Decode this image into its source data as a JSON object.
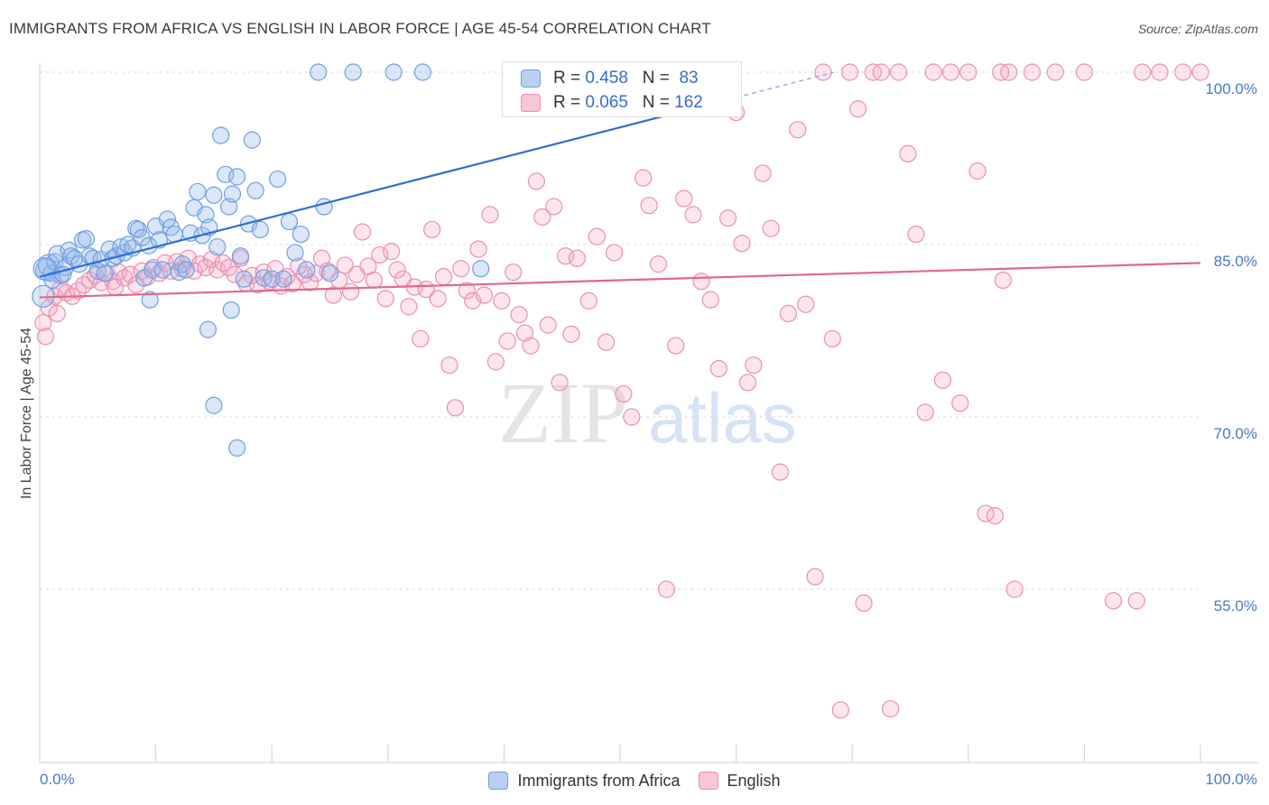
{
  "title": "IMMIGRANTS FROM AFRICA VS ENGLISH IN LABOR FORCE | AGE 45-54 CORRELATION CHART",
  "source": "Source: ZipAtlas.com",
  "watermark": {
    "zip": "ZIP",
    "atlas": "atlas"
  },
  "stats": [
    {
      "r_label": "R =",
      "r_value": "0.458",
      "n_label": "N =",
      "n_value": "83",
      "color": "#6f9ee0"
    },
    {
      "r_label": "R =",
      "r_value": "0.065",
      "n_label": "N =",
      "n_value": "162",
      "color": "#ea8fb0"
    }
  ],
  "legend": [
    {
      "name": "Immigrants from Africa",
      "color": "#6f9ee0"
    },
    {
      "name": "English",
      "color": "#ea8fb0"
    }
  ],
  "chart_data": {
    "type": "scatter",
    "title": "IMMIGRANTS FROM AFRICA VS ENGLISH IN LABOR FORCE | AGE 45-54 CORRELATION CHART",
    "xlabel": "",
    "ylabel": "In Labor Force | Age 45-54",
    "xlim": [
      0,
      100
    ],
    "ylim": [
      40,
      102
    ],
    "x_tick_labels": [
      "0.0%",
      "100.0%"
    ],
    "y_ticks": [
      55,
      70,
      85,
      100
    ],
    "y_tick_labels": [
      "55.0%",
      "70.0%",
      "85.0%",
      "100.0%"
    ],
    "grid": "horizontal dashed",
    "legend_position": "bottom",
    "series": [
      {
        "name": "Immigrants from Africa",
        "color": "#6f9ee0",
        "trend": {
          "x0": 0,
          "y0": 82.2,
          "x1": 100,
          "y1": 108.2,
          "solid_until_x": 60
        },
        "points": [
          [
            0.3,
            80.5
          ],
          [
            0.6,
            82.8
          ],
          [
            0.8,
            83.2
          ],
          [
            1,
            82.5
          ],
          [
            1.3,
            83.5
          ],
          [
            1.5,
            84.2
          ],
          [
            1.8,
            82.3
          ],
          [
            2.2,
            83.0
          ],
          [
            2.5,
            84.5
          ],
          [
            2.7,
            84.0
          ],
          [
            3,
            83.8
          ],
          [
            3.4,
            83.3
          ],
          [
            3.7,
            85.4
          ],
          [
            4,
            85.5
          ],
          [
            4.3,
            84.0
          ],
          [
            4.6,
            83.8
          ],
          [
            5,
            82.7
          ],
          [
            5.3,
            83.7
          ],
          [
            5.6,
            82.5
          ],
          [
            6,
            84.6
          ],
          [
            6.3,
            83.8
          ],
          [
            6.6,
            84.0
          ],
          [
            7,
            84.8
          ],
          [
            7.3,
            84.3
          ],
          [
            7.6,
            85.0
          ],
          [
            8,
            84.7
          ],
          [
            8.3,
            86.4
          ],
          [
            8.5,
            86.3
          ],
          [
            8.8,
            85.6
          ],
          [
            9,
            82.1
          ],
          [
            9.4,
            84.9
          ],
          [
            9.7,
            82.8
          ],
          [
            10,
            86.6
          ],
          [
            10.3,
            85.4
          ],
          [
            10.6,
            82.8
          ],
          [
            11,
            87.2
          ],
          [
            11.3,
            86.5
          ],
          [
            11.6,
            85.9
          ],
          [
            12,
            82.6
          ],
          [
            12.3,
            83.3
          ],
          [
            12.6,
            82.8
          ],
          [
            13,
            86.0
          ],
          [
            13.3,
            88.2
          ],
          [
            13.6,
            89.6
          ],
          [
            14,
            85.8
          ],
          [
            14.3,
            87.6
          ],
          [
            14.6,
            86.5
          ],
          [
            15,
            89.3
          ],
          [
            15.3,
            84.8
          ],
          [
            15.6,
            94.5
          ],
          [
            16,
            91.1
          ],
          [
            16.3,
            88.3
          ],
          [
            16.6,
            89.4
          ],
          [
            17,
            90.9
          ],
          [
            17.3,
            84.0
          ],
          [
            17.6,
            82.0
          ],
          [
            18,
            86.8
          ],
          [
            18.3,
            94.1
          ],
          [
            18.6,
            89.7
          ],
          [
            19,
            86.3
          ],
          [
            19.3,
            82.1
          ],
          [
            20,
            82.0
          ],
          [
            20.5,
            90.7
          ],
          [
            21,
            82.0
          ],
          [
            21.5,
            87.0
          ],
          [
            22,
            84.3
          ],
          [
            22.5,
            85.9
          ],
          [
            23,
            82.8
          ],
          [
            24.5,
            88.3
          ],
          [
            25,
            82.5
          ],
          [
            24,
            100
          ],
          [
            27,
            100
          ],
          [
            30.5,
            100
          ],
          [
            33,
            100
          ],
          [
            9.5,
            80.2
          ],
          [
            14.5,
            77.6
          ],
          [
            16.5,
            79.3
          ],
          [
            15,
            71.0
          ],
          [
            17,
            67.3
          ],
          [
            38,
            82.9
          ],
          [
            0.4,
            82.9
          ],
          [
            1.1,
            81.9
          ],
          [
            2,
            82.4
          ]
        ]
      },
      {
        "name": "English",
        "color": "#ea8fb0",
        "trend": {
          "x0": 0,
          "y0": 80.4,
          "x1": 100,
          "y1": 83.4
        },
        "points": [
          [
            0.3,
            78.2
          ],
          [
            0.8,
            79.5
          ],
          [
            1.3,
            80.5
          ],
          [
            1.8,
            81.2
          ],
          [
            2.3,
            80.8
          ],
          [
            2.8,
            80.5
          ],
          [
            3.3,
            81.0
          ],
          [
            3.8,
            81.5
          ],
          [
            4.3,
            81.9
          ],
          [
            4.8,
            82.3
          ],
          [
            5.3,
            81.7
          ],
          [
            5.8,
            82.5
          ],
          [
            6.3,
            81.8
          ],
          [
            6.8,
            82.6
          ],
          [
            7.3,
            82.1
          ],
          [
            7.8,
            82.4
          ],
          [
            8.3,
            81.5
          ],
          [
            8.8,
            82.7
          ],
          [
            9.3,
            82.2
          ],
          [
            9.8,
            83.0
          ],
          [
            10.3,
            82.5
          ],
          [
            10.8,
            83.4
          ],
          [
            11.3,
            82.7
          ],
          [
            11.8,
            83.5
          ],
          [
            12.3,
            82.9
          ],
          [
            12.8,
            83.8
          ],
          [
            13.3,
            82.7
          ],
          [
            13.8,
            83.3
          ],
          [
            14.3,
            83.0
          ],
          [
            14.8,
            83.7
          ],
          [
            15.3,
            82.8
          ],
          [
            15.8,
            83.4
          ],
          [
            16.3,
            83.0
          ],
          [
            16.8,
            82.4
          ],
          [
            17.3,
            83.8
          ],
          [
            17.8,
            81.6
          ],
          [
            18.3,
            82.3
          ],
          [
            18.8,
            81.5
          ],
          [
            19.3,
            82.6
          ],
          [
            19.8,
            81.8
          ],
          [
            20.3,
            82.9
          ],
          [
            20.8,
            81.4
          ],
          [
            21.3,
            82.2
          ],
          [
            21.8,
            81.6
          ],
          [
            22.3,
            83.1
          ],
          [
            22.8,
            82.4
          ],
          [
            23.3,
            81.7
          ],
          [
            23.8,
            82.5
          ],
          [
            24.3,
            83.8
          ],
          [
            24.8,
            82.7
          ],
          [
            25.3,
            80.6
          ],
          [
            25.8,
            81.9
          ],
          [
            26.3,
            83.2
          ],
          [
            26.8,
            80.9
          ],
          [
            27.3,
            82.4
          ],
          [
            27.8,
            86.1
          ],
          [
            28.3,
            83.1
          ],
          [
            28.8,
            81.9
          ],
          [
            29.3,
            84.1
          ],
          [
            29.8,
            80.3
          ],
          [
            30.3,
            84.4
          ],
          [
            30.8,
            82.8
          ],
          [
            31.3,
            82.0
          ],
          [
            31.8,
            79.6
          ],
          [
            32.3,
            81.3
          ],
          [
            32.8,
            76.8
          ],
          [
            33.3,
            81.1
          ],
          [
            33.8,
            86.3
          ],
          [
            34.3,
            80.3
          ],
          [
            34.8,
            82.2
          ],
          [
            35.3,
            74.5
          ],
          [
            35.8,
            70.8
          ],
          [
            36.3,
            82.9
          ],
          [
            36.8,
            81.0
          ],
          [
            37.3,
            80.1
          ],
          [
            37.8,
            84.6
          ],
          [
            38.3,
            80.6
          ],
          [
            38.8,
            87.6
          ],
          [
            39.3,
            74.8
          ],
          [
            39.8,
            80.1
          ],
          [
            40.3,
            76.6
          ],
          [
            40.8,
            82.6
          ],
          [
            41.3,
            78.9
          ],
          [
            41.8,
            77.3
          ],
          [
            42.3,
            76.2
          ],
          [
            42.8,
            90.5
          ],
          [
            43.3,
            87.4
          ],
          [
            43.8,
            78.0
          ],
          [
            44.3,
            88.3
          ],
          [
            44.8,
            73.0
          ],
          [
            45.3,
            84.0
          ],
          [
            45.8,
            77.2
          ],
          [
            46.3,
            83.8
          ],
          [
            47.3,
            80.1
          ],
          [
            48,
            85.7
          ],
          [
            48.8,
            76.5
          ],
          [
            49.5,
            84.3
          ],
          [
            50.3,
            72.0
          ],
          [
            51,
            70.0
          ],
          [
            52,
            90.8
          ],
          [
            52.5,
            88.4
          ],
          [
            53.3,
            83.3
          ],
          [
            54,
            55.0
          ],
          [
            54.8,
            76.2
          ],
          [
            55.5,
            89.0
          ],
          [
            56.3,
            87.6
          ],
          [
            57,
            81.8
          ],
          [
            57.8,
            80.2
          ],
          [
            58.5,
            74.2
          ],
          [
            59.3,
            87.3
          ],
          [
            60,
            96.5
          ],
          [
            60.5,
            85.1
          ],
          [
            61,
            73.0
          ],
          [
            61.5,
            74.5
          ],
          [
            62.3,
            91.2
          ],
          [
            63,
            86.4
          ],
          [
            63.8,
            65.2
          ],
          [
            64.5,
            79.0
          ],
          [
            65.3,
            95.0
          ],
          [
            66,
            79.8
          ],
          [
            66.8,
            56.1
          ],
          [
            67.5,
            100
          ],
          [
            68.3,
            76.8
          ],
          [
            69,
            44.5
          ],
          [
            69.8,
            100
          ],
          [
            70.5,
            96.8
          ],
          [
            71,
            53.8
          ],
          [
            71.8,
            100
          ],
          [
            72.5,
            100
          ],
          [
            73.3,
            44.6
          ],
          [
            74,
            100
          ],
          [
            74.8,
            92.9
          ],
          [
            75.5,
            85.9
          ],
          [
            76.3,
            70.4
          ],
          [
            77,
            100
          ],
          [
            77.8,
            73.2
          ],
          [
            78.5,
            100
          ],
          [
            79.3,
            71.2
          ],
          [
            80,
            100
          ],
          [
            80.8,
            91.4
          ],
          [
            81.5,
            61.6
          ],
          [
            82.3,
            61.4
          ],
          [
            82.8,
            100
          ],
          [
            83,
            81.9
          ],
          [
            83.5,
            100
          ],
          [
            84,
            55.0
          ],
          [
            85.5,
            100
          ],
          [
            87.5,
            100
          ],
          [
            90,
            100
          ],
          [
            92.5,
            54.0
          ],
          [
            94.5,
            54.0
          ],
          [
            95,
            100
          ],
          [
            96.5,
            100
          ],
          [
            98.5,
            100
          ],
          [
            100,
            100
          ],
          [
            0.5,
            77.0
          ],
          [
            1.5,
            79.0
          ],
          [
            6.5,
            81.3
          ]
        ]
      }
    ]
  }
}
